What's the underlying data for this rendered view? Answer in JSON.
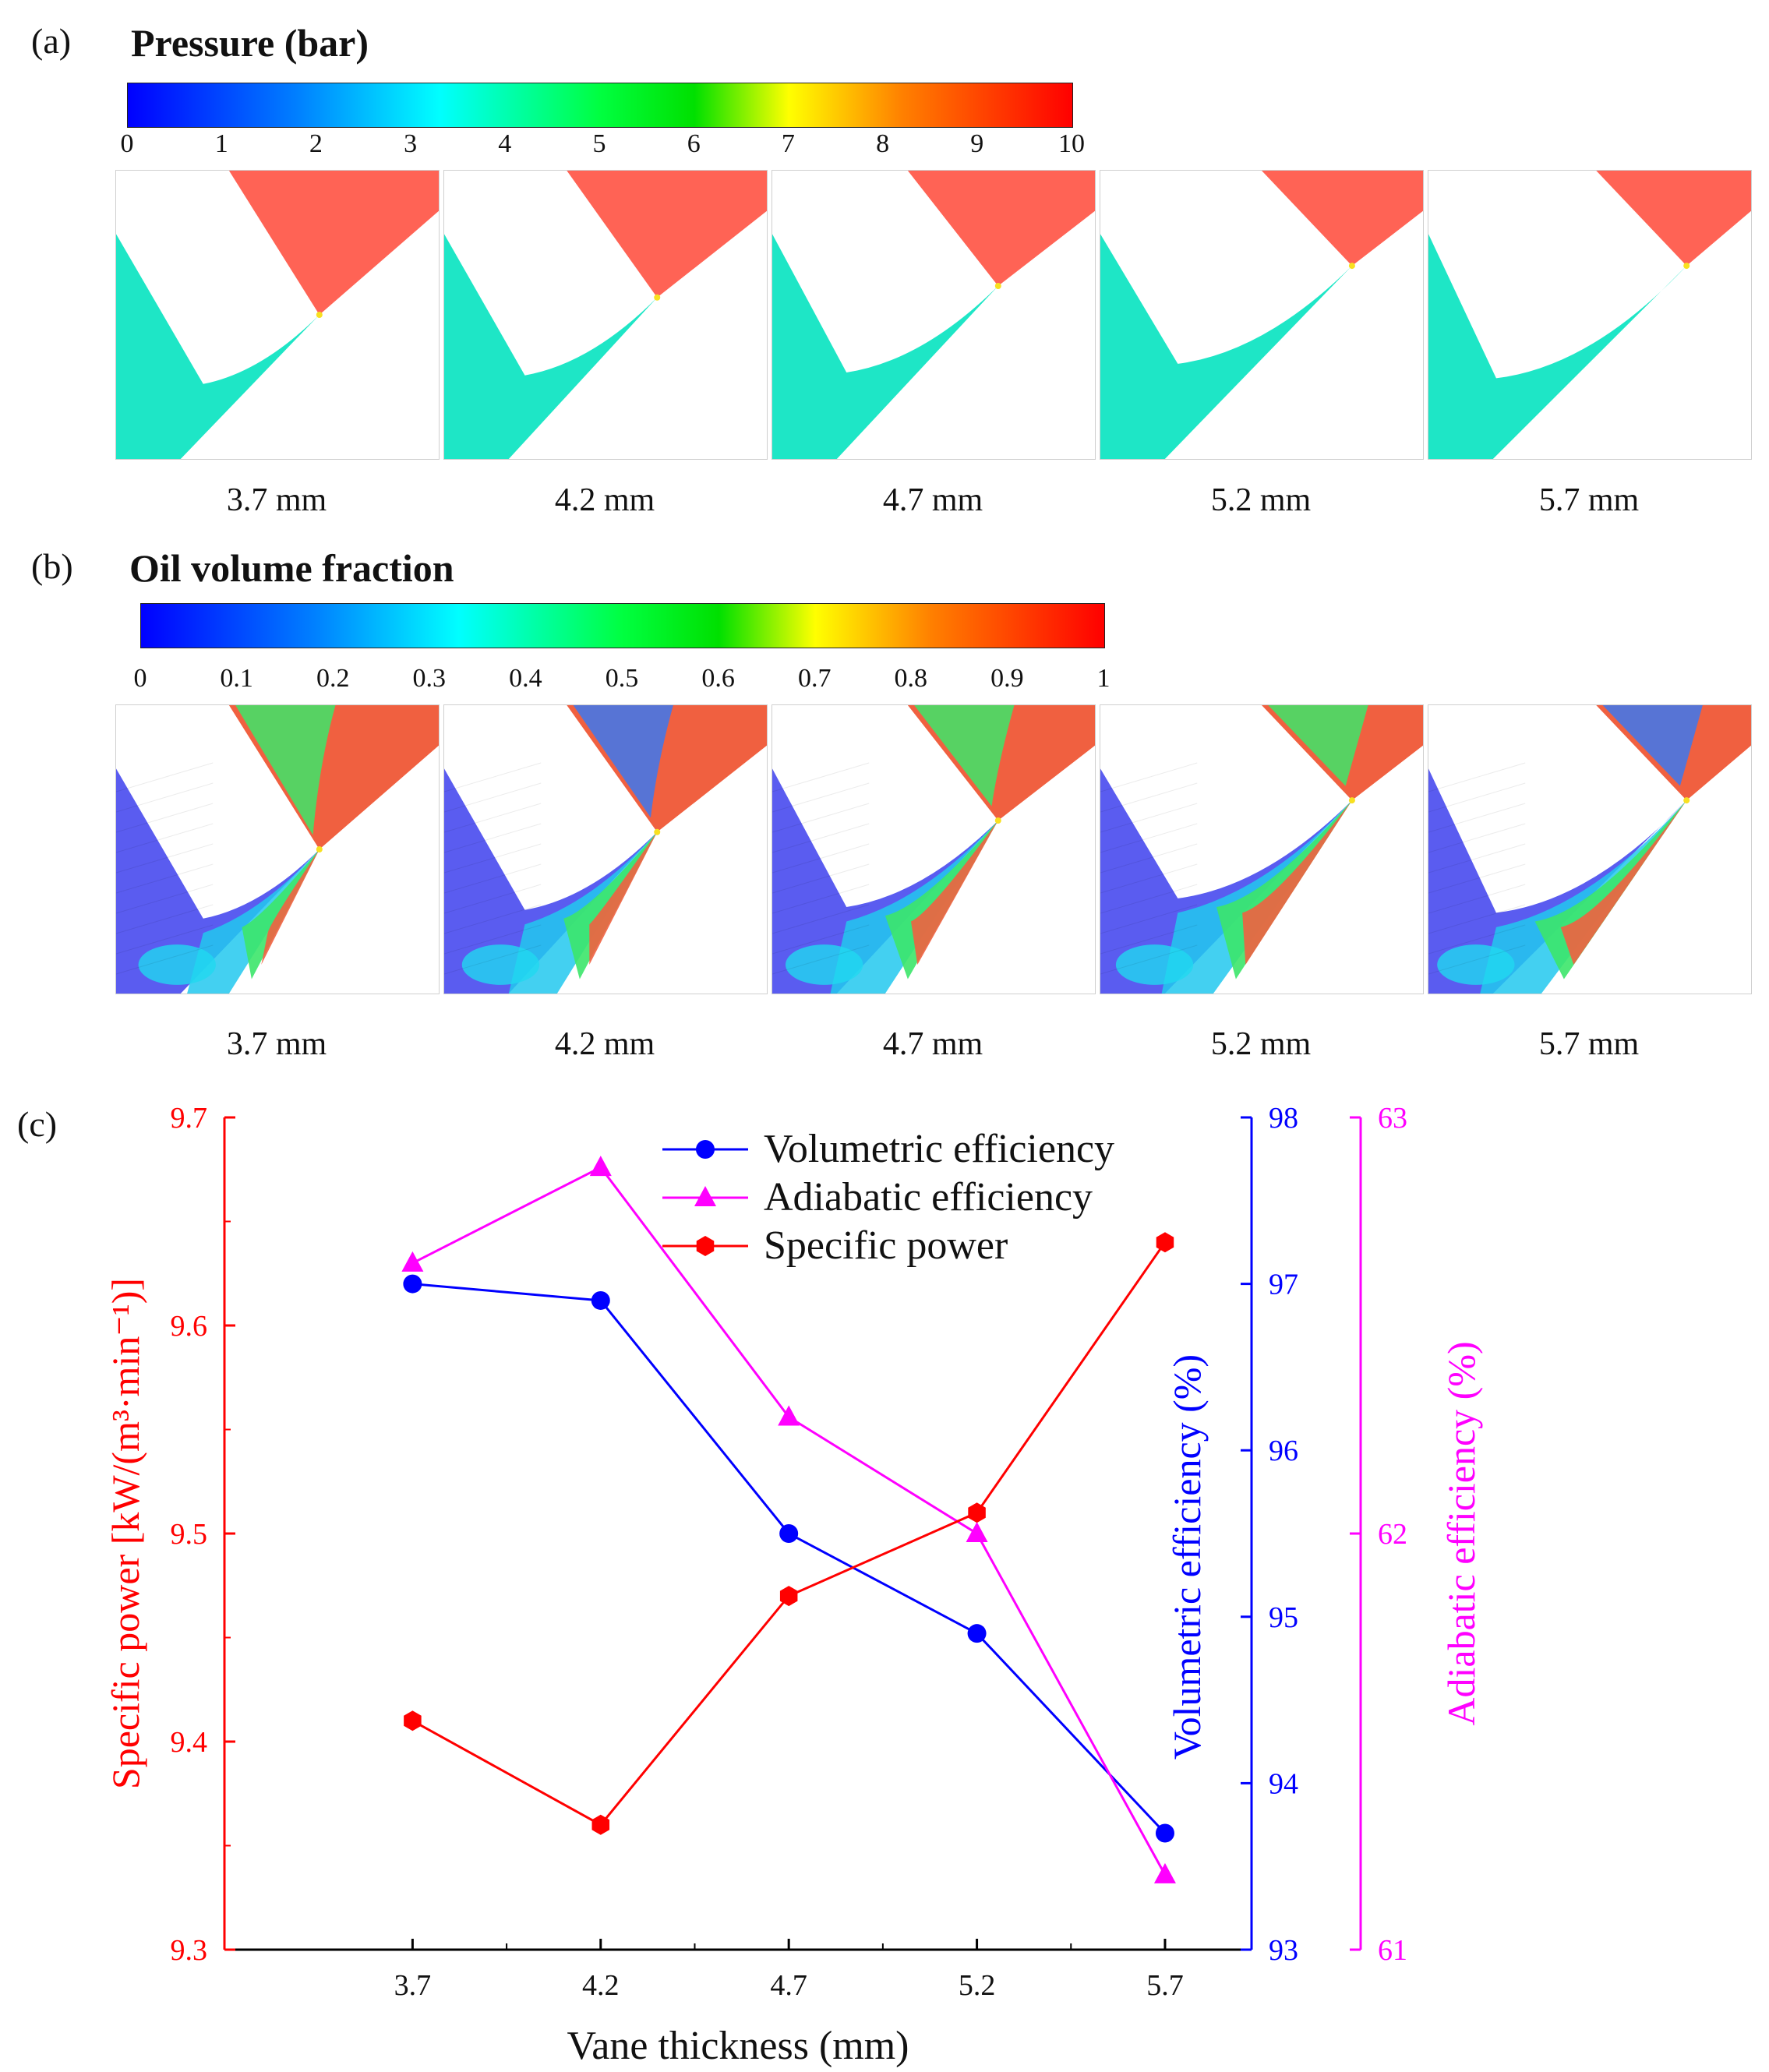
{
  "panel_a": {
    "label": "(a)",
    "title": "Pressure (bar)",
    "colorbar_ticks": [
      "0",
      "1",
      "2",
      "3",
      "4",
      "5",
      "6",
      "7",
      "8",
      "9",
      "10"
    ],
    "captions": [
      "3.7 mm",
      "4.2 mm",
      "4.7 mm",
      "5.2 mm",
      "5.7 mm"
    ]
  },
  "panel_b": {
    "label": "(b)",
    "title": "Oil volume fraction",
    "colorbar_ticks": [
      "0",
      "0.1",
      "0.2",
      "0.3",
      "0.4",
      "0.5",
      "0.6",
      "0.7",
      "0.8",
      "0.9",
      "1"
    ],
    "captions": [
      "3.7 mm",
      "4.2 mm",
      "4.7 mm",
      "5.2 mm",
      "5.7 mm"
    ]
  },
  "panel_c": {
    "label": "(c)"
  },
  "colors": {
    "high_pressure": "#ff6355",
    "low_pressure": "#1ee6c6",
    "oil_low": "#5a5cf0",
    "oil_high": "#f06040",
    "specific_power": "#ff0000",
    "volumetric": "#0000ff",
    "adiabatic": "#ff00ff"
  },
  "chart_data": {
    "type": "line",
    "xlabel": "Vane thickness (mm)",
    "x": [
      3.7,
      4.2,
      4.7,
      5.2,
      5.7
    ],
    "x_tick_labels": [
      "3.7",
      "4.2",
      "4.7",
      "5.2",
      "5.7"
    ],
    "xlim": [
      3.2,
      5.93
    ],
    "series": [
      {
        "name": "Volumetric efficiency",
        "axis": "right1",
        "marker": "circle",
        "values": [
          97.0,
          96.9,
          95.5,
          94.9,
          93.7
        ]
      },
      {
        "name": "Adiabatic efficiency",
        "axis": "right2",
        "marker": "triangle",
        "values": [
          62.65,
          62.88,
          62.28,
          62.0,
          61.18
        ]
      },
      {
        "name": "Specific power",
        "axis": "left",
        "marker": "hexagon",
        "values": [
          9.41,
          9.36,
          9.47,
          9.51,
          9.64
        ]
      }
    ],
    "axes": {
      "left": {
        "label": "Specific power [kW/(m³·min⁻¹)]",
        "ylim": [
          9.3,
          9.7
        ],
        "ticks": [
          "9.3",
          "9.4",
          "9.5",
          "9.6",
          "9.7"
        ]
      },
      "right1": {
        "label": "Volumetric efficiency (%)",
        "ylim": [
          93,
          98
        ],
        "ticks": [
          "93",
          "94",
          "95",
          "96",
          "97",
          "98"
        ]
      },
      "right2": {
        "label": "Adiabatic efficiency (%)",
        "ylim": [
          61,
          63
        ],
        "ticks": [
          "61",
          "62",
          "63"
        ]
      }
    },
    "legend": [
      "Volumetric efficiency",
      "Adiabatic efficiency",
      "Specific power"
    ]
  }
}
